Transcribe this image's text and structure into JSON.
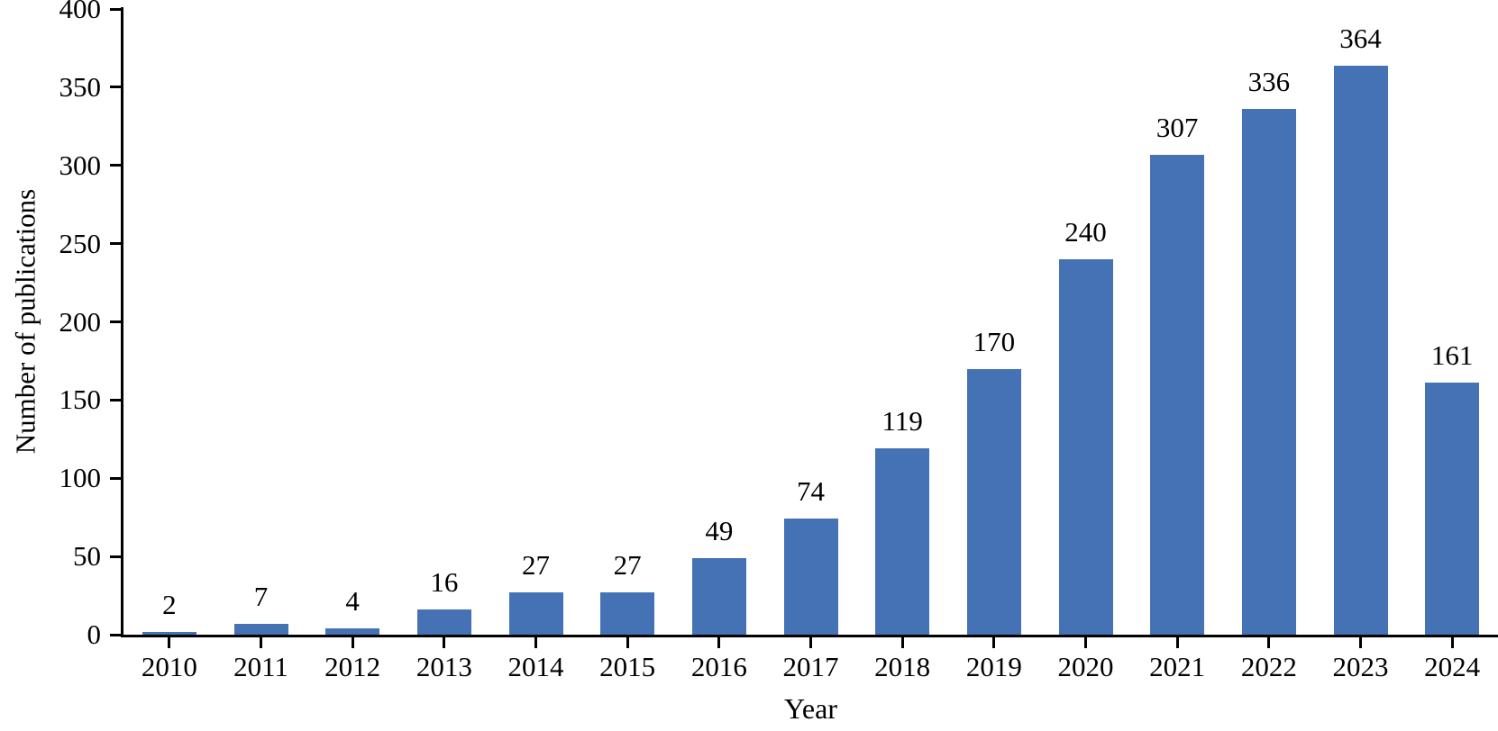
{
  "chart_data": {
    "type": "bar",
    "title": "",
    "xlabel": "Year",
    "ylabel": "Number of publications",
    "categories": [
      "2010",
      "2011",
      "2012",
      "2013",
      "2014",
      "2015",
      "2016",
      "2017",
      "2018",
      "2019",
      "2020",
      "2021",
      "2022",
      "2023",
      "2024"
    ],
    "values": [
      2,
      7,
      4,
      16,
      27,
      27,
      49,
      74,
      119,
      170,
      240,
      307,
      336,
      364,
      161
    ],
    "value_labels_shown": true,
    "ylim": [
      0,
      400
    ],
    "yticks": [
      0,
      50,
      100,
      150,
      200,
      250,
      300,
      350,
      400
    ],
    "grid": false,
    "legend_position": "none",
    "bar_color": "#4472b5",
    "axis_color": "#000000",
    "text_color": "#000000"
  }
}
